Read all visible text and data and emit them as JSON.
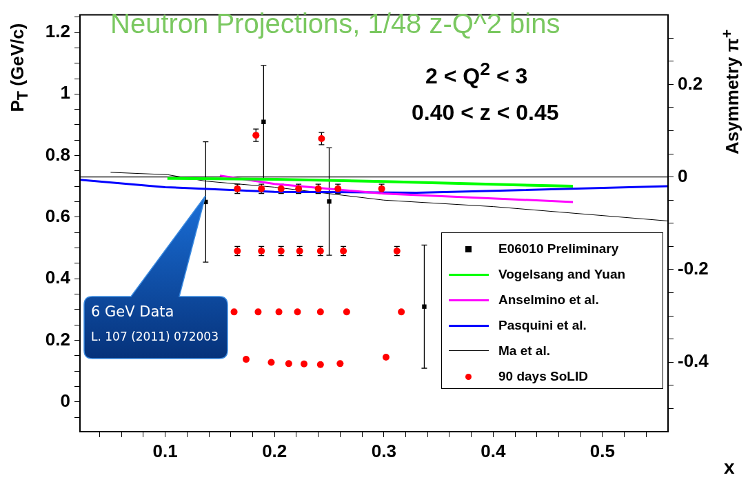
{
  "chart_data": {
    "type": "scatter",
    "title": "Neutron Projections, 1/48 z-Q^2 bins",
    "xlabel": "x",
    "ylabel": "P$_{T}$ (GeV/c)",
    "y2label": "Asymmetry π$^{+}$",
    "annotations": [
      "2 < Q$^{2}$ < 3",
      "0.40 < z < 0.45",
      "6 GeV Data",
      "L. 107 (2011) 072003"
    ],
    "xlim": [
      0.022,
      0.56
    ],
    "xticks": [
      {
        "value": 0.04,
        "label": null
      },
      {
        "value": 0.06,
        "label": null
      },
      {
        "value": 0.08,
        "label": null
      },
      0.1,
      {
        "value": 0.12,
        "label": null
      },
      {
        "value": 0.14,
        "label": null
      },
      {
        "value": 0.16,
        "label": null
      },
      {
        "value": 0.18,
        "label": null
      },
      0.2,
      {
        "value": 0.22,
        "label": null
      },
      {
        "value": 0.24,
        "label": null
      },
      {
        "value": 0.26,
        "label": null
      },
      {
        "value": 0.28,
        "label": null
      },
      0.3,
      {
        "value": 0.32,
        "label": null
      },
      {
        "value": 0.34,
        "label": null
      },
      {
        "value": 0.36,
        "label": null
      },
      {
        "value": 0.38,
        "label": null
      },
      0.4,
      {
        "value": 0.42,
        "label": null
      },
      {
        "value": 0.44,
        "label": null
      },
      {
        "value": 0.46,
        "label": null
      },
      {
        "value": 0.48,
        "label": null
      },
      0.5,
      {
        "value": 0.52,
        "label": null
      },
      {
        "value": 0.54,
        "label": null
      }
    ],
    "ylim": [
      -0.097,
      1.257
    ],
    "yticks": [
      {
        "value": -0.05,
        "label": null
      },
      0,
      {
        "value": 0.05,
        "label": null
      },
      {
        "value": 0.1,
        "label": null
      },
      {
        "value": 0.15,
        "label": null
      },
      0.2,
      {
        "value": 0.25,
        "label": null
      },
      {
        "value": 0.3,
        "label": null
      },
      {
        "value": 0.35,
        "label": null
      },
      0.4,
      {
        "value": 0.45,
        "label": null
      },
      {
        "value": 0.5,
        "label": null
      },
      {
        "value": 0.55,
        "label": null
      },
      0.6,
      {
        "value": 0.65,
        "label": null
      },
      {
        "value": 0.7,
        "label": null
      },
      {
        "value": 0.75,
        "label": null
      },
      0.8,
      {
        "value": 0.85,
        "label": null
      },
      {
        "value": 0.9,
        "label": null
      },
      {
        "value": 0.95,
        "label": null
      },
      1,
      {
        "value": 1.05,
        "label": null
      },
      {
        "value": 1.1,
        "label": null
      },
      {
        "value": 1.15,
        "label": null
      },
      1.2,
      {
        "value": 1.25,
        "label": null
      }
    ],
    "y2lim": [
      -0.55,
      0.35
    ],
    "y2ticks": [
      {
        "value": -0.5,
        "label": null
      },
      {
        "value": -0.45,
        "label": null
      },
      -0.4,
      {
        "value": -0.35,
        "label": null
      },
      {
        "value": -0.3,
        "label": null
      },
      {
        "value": -0.25,
        "label": null
      },
      -0.2,
      {
        "value": -0.15,
        "label": null
      },
      {
        "value": -0.1,
        "label": null
      },
      {
        "value": -0.05,
        "label": null
      },
      0,
      {
        "value": 0.05,
        "label": null
      },
      {
        "value": 0.1,
        "label": null
      },
      {
        "value": 0.15,
        "label": null
      },
      0.2,
      {
        "value": 0.25,
        "label": null
      },
      {
        "value": 0.3,
        "label": null
      }
    ],
    "ref_lines": [
      {
        "axis": "y2",
        "value": 0,
        "color": "#000000"
      }
    ],
    "grid": false,
    "legend": "bottom right",
    "series": [
      {
        "name": "E06010 Preliminary",
        "type": "scatter",
        "marker": "square",
        "color": "#000000",
        "axis": "y2",
        "x": [
          0.137,
          0.19,
          0.25,
          0.337
        ],
        "values": [
          -0.054,
          0.119,
          -0.053,
          -0.28
        ],
        "errors": [
          0.13,
          0.122,
          0.116,
          0.133
        ]
      },
      {
        "name": "Vogelsang and Yuan",
        "type": "line",
        "marker": "none",
        "color": "#00ff00",
        "axis": "y2",
        "x": [
          0.102,
          0.2,
          0.3,
          0.473
        ],
        "values": [
          -0.003,
          -0.005,
          -0.01,
          -0.02
        ]
      },
      {
        "name": "Anselmino et al.",
        "type": "line",
        "marker": "none",
        "color": "#ff00ff",
        "axis": "y2",
        "x": [
          0.15,
          0.2,
          0.3,
          0.473
        ],
        "values": [
          0.003,
          -0.015,
          -0.036,
          -0.054
        ]
      },
      {
        "name": "Pasquini et al.",
        "type": "line",
        "marker": "none",
        "color": "#0000ff",
        "axis": "y2",
        "x": [
          0.022,
          0.1,
          0.2,
          0.33,
          0.4,
          0.56
        ],
        "values": [
          -0.006,
          -0.022,
          -0.032,
          -0.034,
          -0.03,
          -0.02
        ]
      },
      {
        "name": "Ma et al.",
        "type": "line",
        "marker": "none",
        "color": "#000000",
        "axis": "y2",
        "x": [
          0.05,
          0.102,
          0.137,
          0.2,
          0.3,
          0.4,
          0.56
        ],
        "values": [
          0.01,
          0.005,
          -0.009,
          -0.022,
          -0.05,
          -0.064,
          -0.095
        ]
      },
      {
        "name": "90 days SoLID",
        "type": "scatter",
        "marker": "circle",
        "color": "#ff0000",
        "x": [
          0.183,
          0.243,
          0.166,
          0.188,
          0.206,
          0.222,
          0.24,
          0.258,
          0.298,
          0.166,
          0.188,
          0.206,
          0.223,
          0.242,
          0.263,
          0.312,
          0.163,
          0.185,
          0.204,
          0.221,
          0.242,
          0.266,
          0.316,
          0.174,
          0.197,
          0.213,
          0.227,
          0.242,
          0.26,
          0.302
        ],
        "values": [
          0.866,
          0.855,
          0.692,
          0.692,
          0.692,
          0.692,
          0.692,
          0.692,
          0.692,
          0.49,
          0.49,
          0.49,
          0.49,
          0.49,
          0.49,
          0.49,
          0.292,
          0.292,
          0.292,
          0.292,
          0.292,
          0.292,
          0.292,
          0.138,
          0.128,
          0.124,
          0.123,
          0.121,
          0.124,
          0.145
        ],
        "errors": [
          0.02,
          0.02,
          0.015,
          0.015,
          0.015,
          0.015,
          0.015,
          0.015,
          0.015,
          0.015,
          0.015,
          0.015,
          0.015,
          0.015,
          0.015,
          0.015,
          null,
          null,
          null,
          null,
          null,
          null,
          null,
          null,
          null,
          null,
          null,
          null,
          null,
          null
        ]
      }
    ]
  }
}
